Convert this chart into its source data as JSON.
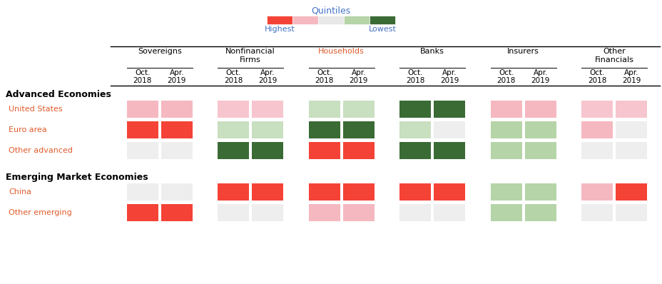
{
  "legend_title": "Quintiles",
  "legend_highest": "Highest",
  "legend_lowest": "Lowest",
  "sectors": [
    "Sovereigns",
    "Nonfinancial\nFirms",
    "Households",
    "Banks",
    "Insurers",
    "Other\nFinancials"
  ],
  "sector_colors": [
    "#000000",
    "#000000",
    "#e05b2b",
    "#000000",
    "#000000",
    "#000000"
  ],
  "row_groups": [
    {
      "group_label": "Advanced Economies",
      "rows": [
        {
          "label": "United States",
          "label_color": "#e05b2b",
          "colors": [
            "#f5b8c0",
            "#f5b8c0",
            "#f7c5ce",
            "#f7c5ce",
            "#c8dfc0",
            "#c8dfc0",
            "#3a6b35",
            "#3a6b35",
            "#f5b8c0",
            "#f5b8c0",
            "#f7c5ce",
            "#f7c5ce"
          ]
        },
        {
          "label": "Euro area",
          "label_color": "#e05b2b",
          "colors": [
            "#f44336",
            "#f44336",
            "#c8dfc0",
            "#c8dfc0",
            "#3a6b35",
            "#3a6b35",
            "#c8dfc0",
            "#eeeeee",
            "#b5d4a8",
            "#b5d4a8",
            "#f5b8c0",
            "#eeeeee"
          ]
        },
        {
          "label": "Other advanced",
          "label_color": "#e05b2b",
          "colors": [
            "#eeeeee",
            "#eeeeee",
            "#3a6b35",
            "#3a6b35",
            "#f44336",
            "#f44336",
            "#3a6b35",
            "#3a6b35",
            "#b5d4a8",
            "#b5d4a8",
            "#eeeeee",
            "#eeeeee"
          ]
        }
      ]
    },
    {
      "group_label": "Emerging Market Economies",
      "rows": [
        {
          "label": "China",
          "label_color": "#e05b2b",
          "colors": [
            "#eeeeee",
            "#eeeeee",
            "#f44336",
            "#f44336",
            "#f44336",
            "#f44336",
            "#f44336",
            "#f44336",
            "#b5d4a8",
            "#b5d4a8",
            "#f5b8c0",
            "#f44336"
          ]
        },
        {
          "label": "Other emerging",
          "label_color": "#e05b2b",
          "colors": [
            "#f44336",
            "#f44336",
            "#eeeeee",
            "#eeeeee",
            "#f5b8c0",
            "#f5b8c0",
            "#eeeeee",
            "#eeeeee",
            "#b5d4a8",
            "#b5d4a8",
            "#eeeeee",
            "#eeeeee"
          ]
        }
      ]
    }
  ],
  "colorbar_colors": [
    "#f44336",
    "#f5b8c0",
    "#e8e8e8",
    "#b5d4a8",
    "#3a6b35"
  ],
  "figsize": [
    9.29,
    3.98
  ],
  "dpi": 100
}
